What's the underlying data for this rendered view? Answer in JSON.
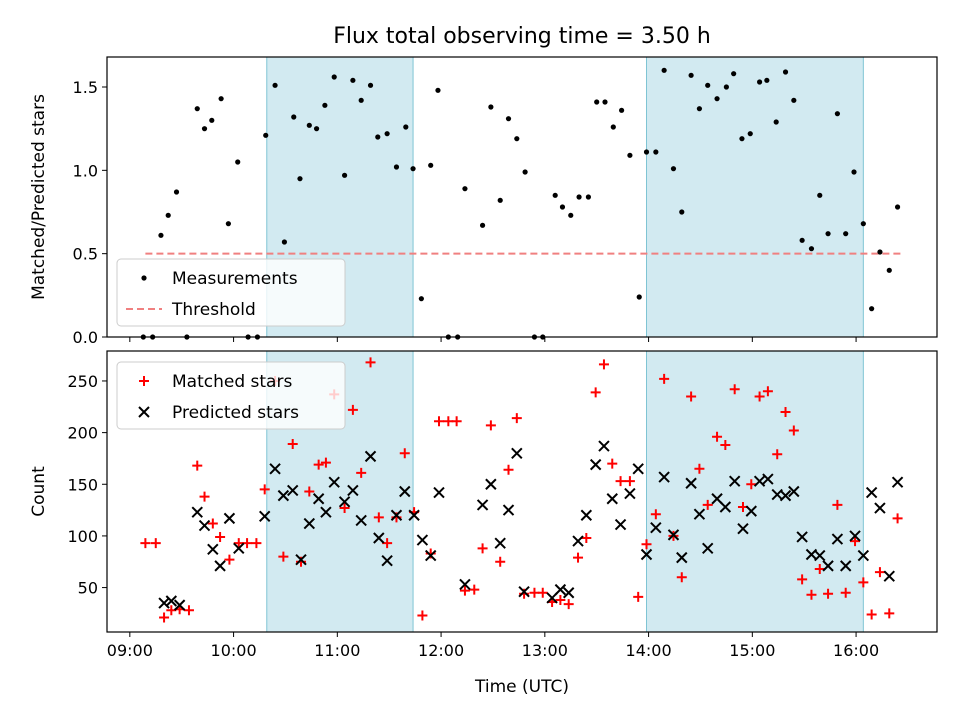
{
  "title": "Flux total observing time = 3.50 h",
  "colors": {
    "shade": "#add8e6",
    "measure": "#000000",
    "threshold": "#f08080",
    "matched": "#ff0000",
    "predicted": "#000000"
  },
  "shaded_periods": [
    [
      10.32,
      11.73
    ],
    [
      13.98,
      16.07
    ]
  ],
  "xlabel": "Time (UTC)",
  "xlim": [
    8.78,
    16.78
  ],
  "xticks": [
    {
      "v": 9,
      "label": "09:00"
    },
    {
      "v": 10,
      "label": "10:00"
    },
    {
      "v": 11,
      "label": "11:00"
    },
    {
      "v": 12,
      "label": "12:00"
    },
    {
      "v": 13,
      "label": "13:00"
    },
    {
      "v": 14,
      "label": "14:00"
    },
    {
      "v": 15,
      "label": "15:00"
    },
    {
      "v": 16,
      "label": "16:00"
    }
  ],
  "chart_data": [
    {
      "type": "scatter",
      "ylabel": "Matched/Predicted stars",
      "ylim": [
        0,
        1.68
      ],
      "yticks": [
        {
          "v": 0,
          "label": "0.0"
        },
        {
          "v": 0.5,
          "label": "0.5"
        },
        {
          "v": 1.0,
          "label": "1.0"
        },
        {
          "v": 1.5,
          "label": "1.5"
        }
      ],
      "legend": {
        "position": "lower-left",
        "entries": [
          "Measurements",
          "Threshold"
        ]
      },
      "threshold": {
        "name": "Threshold",
        "y": 0.5,
        "x": [
          9.15,
          16.45
        ]
      },
      "series": [
        {
          "name": "Measurements",
          "points": [
            [
              9.13,
              0
            ],
            [
              9.22,
              0
            ],
            [
              9.3,
              0.61
            ],
            [
              9.37,
              0.73
            ],
            [
              9.45,
              0.87
            ],
            [
              9.55,
              0
            ],
            [
              9.65,
              1.37
            ],
            [
              9.72,
              1.25
            ],
            [
              9.79,
              1.3
            ],
            [
              9.88,
              1.43
            ],
            [
              9.95,
              0.68
            ],
            [
              10.04,
              1.05
            ],
            [
              10.14,
              0
            ],
            [
              10.23,
              0
            ],
            [
              10.31,
              1.21
            ],
            [
              10.4,
              1.51
            ],
            [
              10.49,
              0.57
            ],
            [
              10.58,
              1.32
            ],
            [
              10.64,
              0.95
            ],
            [
              10.73,
              1.27
            ],
            [
              10.8,
              1.25
            ],
            [
              10.88,
              1.39
            ],
            [
              10.97,
              1.56
            ],
            [
              11.07,
              0.97
            ],
            [
              11.15,
              1.54
            ],
            [
              11.23,
              1.42
            ],
            [
              11.32,
              1.51
            ],
            [
              11.39,
              1.2
            ],
            [
              11.48,
              1.22
            ],
            [
              11.57,
              1.02
            ],
            [
              11.66,
              1.26
            ],
            [
              11.73,
              1.01
            ],
            [
              11.81,
              0.23
            ],
            [
              11.9,
              1.03
            ],
            [
              11.97,
              1.48
            ],
            [
              12.07,
              0
            ],
            [
              12.16,
              0
            ],
            [
              12.23,
              0.89
            ],
            [
              12.4,
              0.67
            ],
            [
              12.48,
              1.38
            ],
            [
              12.57,
              0.82
            ],
            [
              12.65,
              1.31
            ],
            [
              12.73,
              1.19
            ],
            [
              12.81,
              0.99
            ],
            [
              12.9,
              0
            ],
            [
              12.98,
              0
            ],
            [
              13.1,
              0.85
            ],
            [
              13.17,
              0.78
            ],
            [
              13.25,
              0.73
            ],
            [
              13.33,
              0.84
            ],
            [
              13.42,
              0.84
            ],
            [
              13.5,
              1.41
            ],
            [
              13.58,
              1.41
            ],
            [
              13.66,
              1.26
            ],
            [
              13.74,
              1.36
            ],
            [
              13.82,
              1.09
            ],
            [
              13.91,
              0.24
            ],
            [
              13.98,
              1.11
            ],
            [
              14.07,
              1.11
            ],
            [
              14.15,
              1.6
            ],
            [
              14.24,
              1.01
            ],
            [
              14.32,
              0.75
            ],
            [
              14.41,
              1.57
            ],
            [
              14.49,
              1.37
            ],
            [
              14.57,
              1.51
            ],
            [
              14.66,
              1.43
            ],
            [
              14.75,
              1.5
            ],
            [
              14.82,
              1.58
            ],
            [
              14.9,
              1.19
            ],
            [
              14.98,
              1.22
            ],
            [
              15.07,
              1.53
            ],
            [
              15.14,
              1.54
            ],
            [
              15.23,
              1.29
            ],
            [
              15.32,
              1.59
            ],
            [
              15.4,
              1.42
            ],
            [
              15.48,
              0.58
            ],
            [
              15.57,
              0.53
            ],
            [
              15.65,
              0.85
            ],
            [
              15.73,
              0.62
            ],
            [
              15.82,
              1.34
            ],
            [
              15.9,
              0.62
            ],
            [
              15.98,
              0.99
            ],
            [
              16.07,
              0.68
            ],
            [
              16.15,
              0.17
            ],
            [
              16.23,
              0.51
            ],
            [
              16.32,
              0.4
            ],
            [
              16.4,
              0.78
            ]
          ]
        }
      ]
    },
    {
      "type": "scatter",
      "ylabel": "Count",
      "ylabel_x": "Time (UTC)",
      "ylim": [
        7,
        279
      ],
      "yticks": [
        {
          "v": 50,
          "label": "50"
        },
        {
          "v": 100,
          "label": "100"
        },
        {
          "v": 150,
          "label": "150"
        },
        {
          "v": 200,
          "label": "200"
        },
        {
          "v": 250,
          "label": "250"
        }
      ],
      "legend": {
        "position": "upper-left",
        "entries": [
          "Matched stars",
          "Predicted stars"
        ]
      },
      "series": [
        {
          "name": "Matched stars",
          "marker": "plus",
          "points": [
            [
              9.15,
              93
            ],
            [
              9.25,
              93
            ],
            [
              9.33,
              21
            ],
            [
              9.4,
              28
            ],
            [
              9.48,
              29
            ],
            [
              9.57,
              28
            ],
            [
              9.65,
              168
            ],
            [
              9.72,
              138
            ],
            [
              9.8,
              112
            ],
            [
              9.87,
              99
            ],
            [
              9.96,
              77
            ],
            [
              10.05,
              93
            ],
            [
              10.13,
              93
            ],
            [
              10.22,
              93
            ],
            [
              10.3,
              145
            ],
            [
              10.4,
              250
            ],
            [
              10.48,
              80
            ],
            [
              10.57,
              189
            ],
            [
              10.65,
              75
            ],
            [
              10.73,
              143
            ],
            [
              10.82,
              169
            ],
            [
              10.89,
              171
            ],
            [
              10.97,
              237
            ],
            [
              11.07,
              127
            ],
            [
              11.15,
              222
            ],
            [
              11.23,
              161
            ],
            [
              11.32,
              268
            ],
            [
              11.4,
              118
            ],
            [
              11.48,
              93
            ],
            [
              11.57,
              118
            ],
            [
              11.65,
              180
            ],
            [
              11.74,
              123
            ],
            [
              11.82,
              23
            ],
            [
              11.9,
              83
            ],
            [
              11.98,
              211
            ],
            [
              12.07,
              211
            ],
            [
              12.15,
              211
            ],
            [
              12.23,
              47
            ],
            [
              12.32,
              48
            ],
            [
              12.4,
              88
            ],
            [
              12.48,
              207
            ],
            [
              12.57,
              75
            ],
            [
              12.65,
              164
            ],
            [
              12.73,
              214
            ],
            [
              12.8,
              44
            ],
            [
              12.9,
              45
            ],
            [
              12.98,
              45
            ],
            [
              13.07,
              36
            ],
            [
              13.15,
              38
            ],
            [
              13.23,
              34
            ],
            [
              13.32,
              79
            ],
            [
              13.4,
              98
            ],
            [
              13.49,
              239
            ],
            [
              13.57,
              266
            ],
            [
              13.65,
              170
            ],
            [
              13.73,
              153
            ],
            [
              13.82,
              153
            ],
            [
              13.9,
              41
            ],
            [
              13.98,
              92
            ],
            [
              14.07,
              121
            ],
            [
              14.15,
              252
            ],
            [
              14.24,
              100
            ],
            [
              14.32,
              60
            ],
            [
              14.41,
              235
            ],
            [
              14.49,
              165
            ],
            [
              14.57,
              130
            ],
            [
              14.66,
              196
            ],
            [
              14.74,
              188
            ],
            [
              14.83,
              242
            ],
            [
              14.91,
              128
            ],
            [
              14.99,
              150
            ],
            [
              15.07,
              235
            ],
            [
              15.15,
              240
            ],
            [
              15.24,
              179
            ],
            [
              15.32,
              220
            ],
            [
              15.4,
              202
            ],
            [
              15.48,
              58
            ],
            [
              15.57,
              43
            ],
            [
              15.65,
              68
            ],
            [
              15.73,
              44
            ],
            [
              15.82,
              130
            ],
            [
              15.9,
              45
            ],
            [
              15.99,
              95
            ],
            [
              16.07,
              55
            ],
            [
              16.15,
              24
            ],
            [
              16.23,
              65
            ],
            [
              16.32,
              25
            ],
            [
              16.4,
              117
            ]
          ]
        },
        {
          "name": "Predicted stars",
          "marker": "x",
          "points": [
            [
              9.33,
              35
            ],
            [
              9.4,
              37
            ],
            [
              9.48,
              33
            ],
            [
              9.65,
              123
            ],
            [
              9.72,
              110
            ],
            [
              9.8,
              87
            ],
            [
              9.87,
              71
            ],
            [
              9.96,
              117
            ],
            [
              10.05,
              88
            ],
            [
              10.3,
              119
            ],
            [
              10.4,
              165
            ],
            [
              10.48,
              139
            ],
            [
              10.57,
              144
            ],
            [
              10.65,
              77
            ],
            [
              10.73,
              112
            ],
            [
              10.82,
              136
            ],
            [
              10.89,
              123
            ],
            [
              10.97,
              152
            ],
            [
              11.07,
              133
            ],
            [
              11.15,
              144
            ],
            [
              11.23,
              115
            ],
            [
              11.32,
              177
            ],
            [
              11.4,
              98
            ],
            [
              11.48,
              76
            ],
            [
              11.57,
              120
            ],
            [
              11.65,
              143
            ],
            [
              11.74,
              120
            ],
            [
              11.82,
              96
            ],
            [
              11.9,
              81
            ],
            [
              11.98,
              142
            ],
            [
              12.23,
              53
            ],
            [
              12.4,
              130
            ],
            [
              12.48,
              150
            ],
            [
              12.57,
              93
            ],
            [
              12.65,
              125
            ],
            [
              12.73,
              180
            ],
            [
              12.8,
              46
            ],
            [
              13.07,
              40
            ],
            [
              13.15,
              48
            ],
            [
              13.23,
              45
            ],
            [
              13.32,
              95
            ],
            [
              13.4,
              120
            ],
            [
              13.49,
              169
            ],
            [
              13.57,
              187
            ],
            [
              13.65,
              136
            ],
            [
              13.73,
              111
            ],
            [
              13.82,
              141
            ],
            [
              13.9,
              165
            ],
            [
              13.98,
              82
            ],
            [
              14.07,
              108
            ],
            [
              14.15,
              157
            ],
            [
              14.24,
              101
            ],
            [
              14.32,
              79
            ],
            [
              14.41,
              151
            ],
            [
              14.49,
              121
            ],
            [
              14.57,
              88
            ],
            [
              14.66,
              136
            ],
            [
              14.74,
              128
            ],
            [
              14.83,
              153
            ],
            [
              14.91,
              107
            ],
            [
              14.99,
              124
            ],
            [
              15.07,
              153
            ],
            [
              15.15,
              155
            ],
            [
              15.24,
              140
            ],
            [
              15.32,
              139
            ],
            [
              15.4,
              143
            ],
            [
              15.48,
              99
            ],
            [
              15.57,
              82
            ],
            [
              15.65,
              81
            ],
            [
              15.73,
              71
            ],
            [
              15.82,
              97
            ],
            [
              15.9,
              71
            ],
            [
              15.99,
              100
            ],
            [
              16.07,
              81
            ],
            [
              16.15,
              142
            ],
            [
              16.23,
              127
            ],
            [
              16.32,
              61
            ],
            [
              16.4,
              152
            ]
          ]
        }
      ]
    }
  ]
}
